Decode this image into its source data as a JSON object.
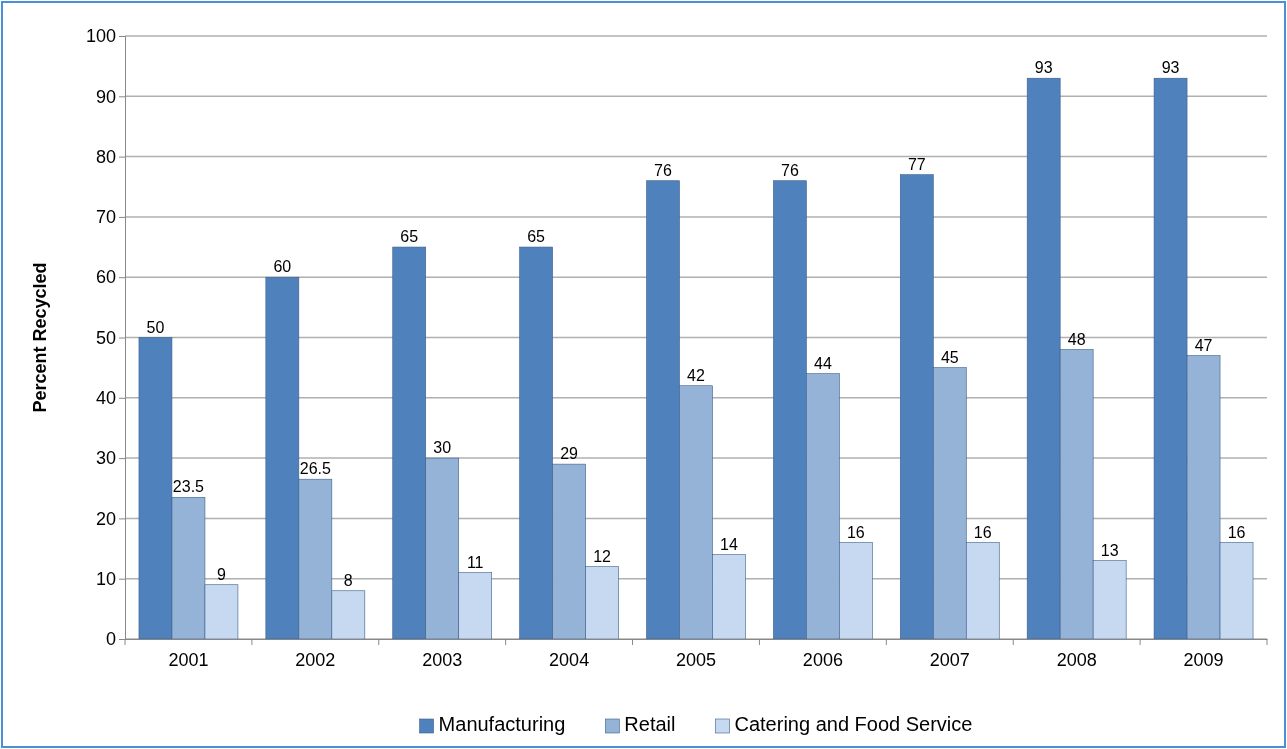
{
  "chart_data": {
    "type": "bar",
    "ylabel": "Percent Recycled",
    "categories": [
      "2001",
      "2002",
      "2003",
      "2004",
      "2005",
      "2006",
      "2007",
      "2008",
      "2009"
    ],
    "series": [
      {
        "name": "Manufacturing",
        "color": "#4f81bd",
        "values": [
          50,
          60,
          65,
          65,
          76,
          76,
          77,
          93,
          93
        ]
      },
      {
        "name": "Retail",
        "color": "#95b3d7",
        "values": [
          23.5,
          26.5,
          30,
          29,
          42,
          44,
          45,
          48,
          47
        ]
      },
      {
        "name": "Catering and Food Service",
        "color": "#c6d9f1",
        "values": [
          9,
          8,
          11,
          12,
          14,
          16,
          16,
          13,
          16
        ]
      }
    ],
    "ylim": [
      0,
      100
    ],
    "yticks": [
      0,
      10,
      20,
      30,
      40,
      50,
      60,
      70,
      80,
      90,
      100
    ],
    "grid": "y",
    "legend": "bottom",
    "data_labels": true
  }
}
